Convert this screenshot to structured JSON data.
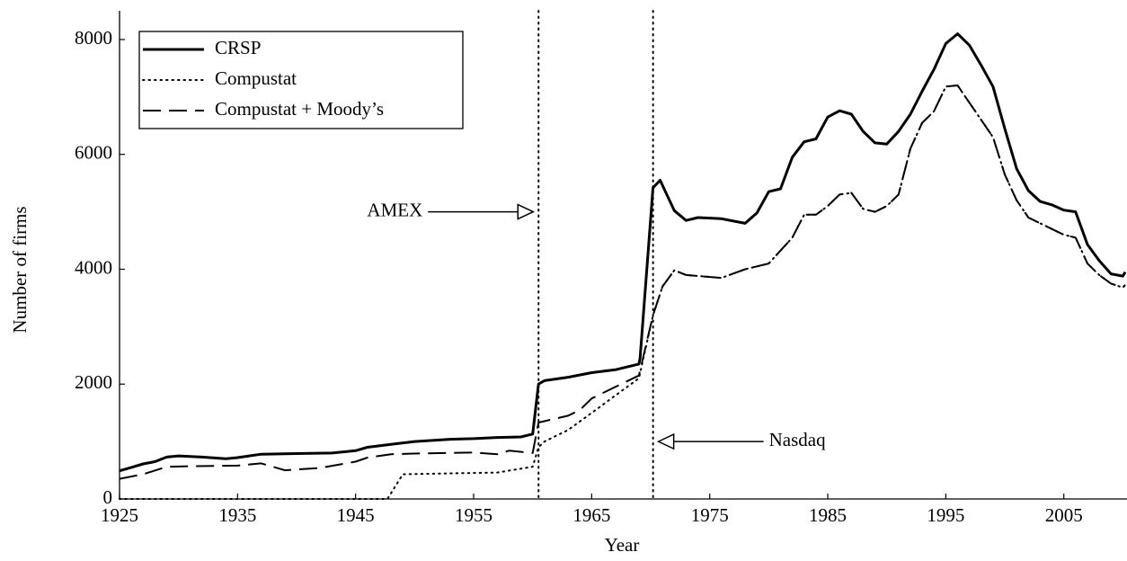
{
  "chart_data": {
    "type": "line",
    "xlabel": "Year",
    "ylabel": "Number of firms",
    "xlim": [
      1925,
      2010.2
    ],
    "ylim": [
      0,
      8500
    ],
    "xticks": [
      1925,
      1935,
      1945,
      1955,
      1965,
      1975,
      1985,
      1995,
      2005
    ],
    "yticks": [
      0,
      2000,
      4000,
      6000,
      8000
    ],
    "legend": "top-left",
    "series": [
      {
        "name": "CRSP",
        "color": "#000000",
        "dash": "solid",
        "x": [
          1925,
          1926,
          1927,
          1928,
          1929,
          1930,
          1932,
          1934,
          1935,
          1937,
          1940,
          1943,
          1945,
          1946,
          1948,
          1950,
          1953,
          1955,
          1957,
          1959,
          1960,
          1960.5,
          1961,
          1963,
          1965,
          1967,
          1969,
          1969.1,
          1970.2,
          1970.8,
          1972,
          1973,
          1974,
          1976,
          1978,
          1979,
          1980,
          1981,
          1982,
          1983,
          1984,
          1985,
          1986,
          1987,
          1988,
          1989,
          1990,
          1991,
          1992,
          1993,
          1994,
          1995,
          1996,
          1997,
          1998,
          1999,
          2000,
          2001,
          2002,
          2003,
          2004,
          2005,
          2006,
          2007,
          2008,
          2009,
          2010,
          2010.2
        ],
        "values": [
          490,
          550,
          610,
          650,
          730,
          750,
          730,
          700,
          720,
          780,
          790,
          800,
          840,
          900,
          950,
          1000,
          1040,
          1050,
          1070,
          1080,
          1130,
          2000,
          2060,
          2120,
          2200,
          2250,
          2350,
          2450,
          5420,
          5550,
          5020,
          4850,
          4900,
          4880,
          4800,
          4980,
          5350,
          5400,
          5950,
          6220,
          6270,
          6650,
          6760,
          6700,
          6400,
          6200,
          6180,
          6400,
          6700,
          7100,
          7480,
          7930,
          8100,
          7900,
          7550,
          7180,
          6450,
          5750,
          5370,
          5180,
          5120,
          5030,
          5000,
          4430,
          4150,
          3920,
          3880,
          3950
        ]
      },
      {
        "name": "Compustat",
        "color": "#000000",
        "dash": "dotted",
        "x": [
          1925,
          1947.7,
          1949,
          1957,
          1960,
          1960.5,
          1961,
          1963,
          1965,
          1967,
          1969,
          1970.2,
          1971,
          1972,
          1973,
          1976,
          1978,
          1980,
          1982,
          1983,
          1984,
          1985,
          1986,
          1987,
          1988,
          1989,
          1990,
          1991,
          1992,
          1993,
          1994,
          1995,
          1996,
          1997,
          1998,
          1999,
          2000,
          2001,
          2002,
          2003,
          2004,
          2005,
          2006,
          2007,
          2008,
          2009,
          2010,
          2010.2
        ],
        "values": [
          0,
          0,
          430,
          460,
          560,
          900,
          1000,
          1200,
          1500,
          1800,
          2100,
          3200,
          3700,
          3980,
          3900,
          3850,
          4000,
          4100,
          4550,
          4950,
          4950,
          5100,
          5300,
          5330,
          5050,
          5000,
          5100,
          5300,
          6100,
          6550,
          6750,
          7180,
          7200,
          6900,
          6600,
          6300,
          5650,
          5200,
          4900,
          4800,
          4700,
          4600,
          4550,
          4100,
          3900,
          3750,
          3680,
          3730
        ]
      },
      {
        "name": "Compustat + Moody’s",
        "color": "#000000",
        "dash": "dashed",
        "x": [
          1925,
          1927,
          1929,
          1931,
          1935,
          1937,
          1939,
          1942,
          1945,
          1946,
          1948,
          1950,
          1955,
          1957,
          1958,
          1960,
          1960.5,
          1963,
          1964,
          1965,
          1967,
          1969,
          1970.2,
          1971,
          1972,
          1973,
          1976,
          1978,
          1980,
          1982,
          1983,
          1984,
          1985,
          1986,
          1987,
          1988,
          1989,
          1990,
          1991,
          1992,
          1993,
          1994,
          1995,
          1996,
          1997,
          1998,
          1999,
          2000,
          2001,
          2002,
          2003,
          2004,
          2005,
          2006,
          2007,
          2008,
          2009,
          2010,
          2010.2
        ],
        "values": [
          350,
          430,
          560,
          570,
          580,
          620,
          500,
          540,
          650,
          720,
          780,
          790,
          810,
          780,
          840,
          800,
          1330,
          1450,
          1550,
          1750,
          1950,
          2150,
          3200,
          3700,
          3980,
          3900,
          3850,
          4000,
          4100,
          4550,
          4950,
          4950,
          5100,
          5300,
          5330,
          5050,
          5000,
          5100,
          5300,
          6100,
          6550,
          6750,
          7180,
          7200,
          6900,
          6600,
          6300,
          5650,
          5200,
          4900,
          4800,
          4700,
          4600,
          4550,
          4100,
          3900,
          3750,
          3680,
          3730
        ]
      }
    ],
    "annotations": [
      {
        "text": "AMEX",
        "x": 1960.5,
        "y": 5000,
        "side": "left"
      },
      {
        "text": "Nasdaq",
        "x": 1970.2,
        "y": 1000,
        "side": "right"
      }
    ]
  }
}
